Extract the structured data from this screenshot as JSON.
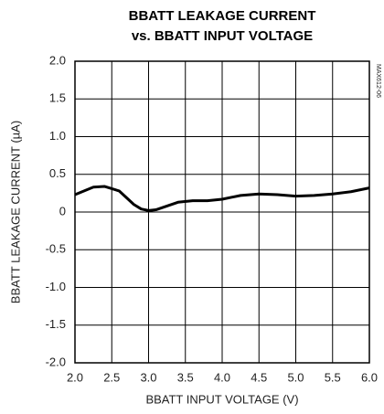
{
  "chart_data": {
    "type": "line",
    "title": [
      "BBATT LEAKAGE CURRENT",
      "vs. BBATT INPUT VOLTAGE"
    ],
    "annotation": "MAX612-06",
    "x_label": "BBATT INPUT VOLTAGE  (V)",
    "y_label": "BBATT LEAKAGE CURRENT (µA)",
    "x": [
      2.0,
      2.25,
      2.4,
      2.6,
      2.8,
      2.9,
      3.0,
      3.1,
      3.25,
      3.4,
      3.6,
      3.8,
      4.0,
      4.25,
      4.5,
      4.75,
      5.0,
      5.25,
      5.5,
      5.75,
      6.0
    ],
    "series": [
      {
        "color": "#000000",
        "values": [
          0.23,
          0.33,
          0.34,
          0.28,
          0.1,
          0.04,
          0.02,
          0.03,
          0.08,
          0.13,
          0.15,
          0.15,
          0.17,
          0.22,
          0.24,
          0.23,
          0.21,
          0.22,
          0.24,
          0.27,
          0.32
        ]
      }
    ],
    "xlim": [
      2,
      6
    ],
    "ylim": [
      -2,
      2
    ],
    "xticks": [
      {
        "value": 2,
        "label": "2.0"
      },
      2.5,
      {
        "value": 3,
        "label": "3.0"
      },
      3.5,
      {
        "value": 4,
        "label": "4.0"
      },
      4.5,
      {
        "value": 5,
        "label": "5.0"
      },
      5.5,
      {
        "value": 6,
        "label": "6.0"
      }
    ],
    "yticks": [
      {
        "value": -2,
        "label": "-2.0"
      },
      -1.5,
      {
        "value": -1,
        "label": "-1.0"
      },
      -0.5,
      0,
      0.5,
      {
        "value": 1,
        "label": "1.0"
      },
      1.5,
      {
        "value": 2,
        "label": "2.0"
      }
    ],
    "grid": true
  }
}
